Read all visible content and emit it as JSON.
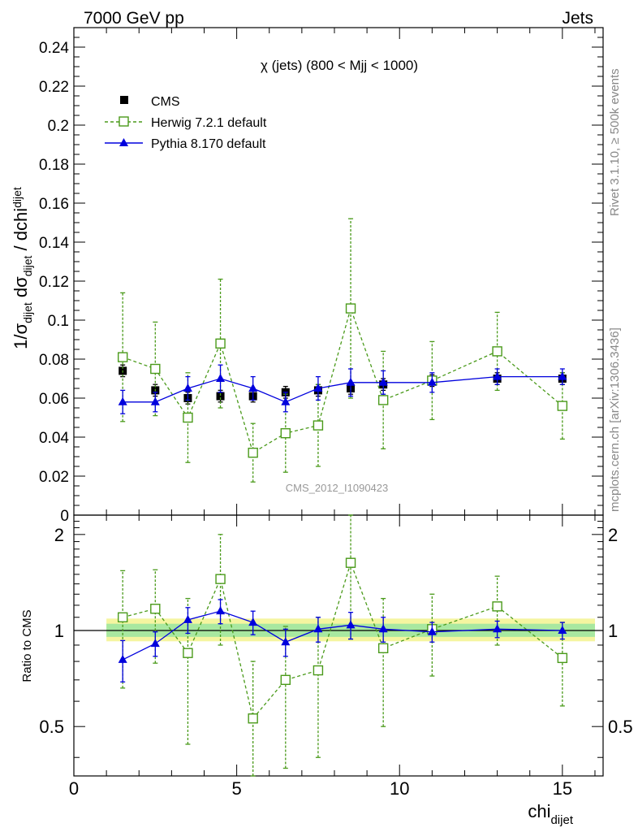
{
  "header": {
    "left": "7000 GeV pp",
    "right": "Jets"
  },
  "side": {
    "rivet": "Rivet 3.1.10, ≥ 500k events",
    "mcplots": "mcplots.cern.ch [arXiv:1306.3436]"
  },
  "analysis_tag": "CMS_2012_I1090423",
  "chart_data": [
    {
      "type": "scatter",
      "title": "χ (jets) (800 < Mjj < 1000)",
      "ylabel": {
        "main": "1/σ",
        "s1": "dijet",
        "mid": " dσ",
        "s2": "dijet",
        "end": " / dchi",
        "s3": "dijet"
      },
      "ylim": [
        0,
        0.25
      ],
      "yticks": [
        "0",
        "0.02",
        "0.04",
        "0.06",
        "0.08",
        "0.1",
        "0.12",
        "0.14",
        "0.16",
        "0.18",
        "0.2",
        "0.22",
        "0.24"
      ],
      "xlim": [
        0,
        16.25
      ],
      "legend_position": "top-left",
      "series": [
        {
          "name": "CMS",
          "style": "data",
          "color": "#000000",
          "x": [
            1.5,
            2.5,
            3.5,
            4.5,
            5.5,
            6.5,
            7.5,
            8.5,
            9.5,
            11,
            13,
            15
          ],
          "y": [
            0.074,
            0.064,
            0.06,
            0.061,
            0.061,
            0.063,
            0.064,
            0.065,
            0.067,
            0.069,
            0.07,
            0.07
          ],
          "err": [
            0.003,
            0.003,
            0.003,
            0.003,
            0.003,
            0.003,
            0.003,
            0.003,
            0.003,
            0.003,
            0.003,
            0.003
          ]
        },
        {
          "name": "Herwig 7.2.1 default",
          "style": "herwig",
          "color": "#4a9a1a",
          "x": [
            1.5,
            2.5,
            3.5,
            4.5,
            5.5,
            6.5,
            7.5,
            8.5,
            9.5,
            11,
            13,
            15
          ],
          "y": [
            0.081,
            0.075,
            0.05,
            0.088,
            0.032,
            0.042,
            0.046,
            0.106,
            0.059,
            0.069,
            0.084,
            0.056
          ],
          "err": [
            0.033,
            0.024,
            0.023,
            0.033,
            0.015,
            0.02,
            0.021,
            0.046,
            0.025,
            0.02,
            0.02,
            0.017
          ]
        },
        {
          "name": "Pythia 8.170 default",
          "style": "pythia",
          "color": "#0000dd",
          "x": [
            1.5,
            2.5,
            3.5,
            4.5,
            5.5,
            6.5,
            7.5,
            8.5,
            9.5,
            11,
            13,
            15
          ],
          "y": [
            0.058,
            0.058,
            0.065,
            0.07,
            0.065,
            0.058,
            0.065,
            0.068,
            0.068,
            0.068,
            0.071,
            0.071
          ],
          "err": [
            0.006,
            0.005,
            0.006,
            0.007,
            0.006,
            0.005,
            0.006,
            0.007,
            0.006,
            0.005,
            0.004,
            0.004
          ]
        }
      ]
    },
    {
      "type": "scatter",
      "ylabel": "Ratio to CMS",
      "xlabel": {
        "main": "chi",
        "sub": "dijet"
      },
      "ylim": [
        0.35,
        2.3
      ],
      "yticks": [
        "0.5",
        "1",
        "2"
      ],
      "xticks": [
        "0",
        "5",
        "10",
        "15"
      ],
      "xlim": [
        0,
        16.25
      ],
      "band_x": [
        1,
        16
      ],
      "series": [
        {
          "name": "Herwig 7.2.1 default",
          "style": "herwig",
          "color": "#4a9a1a",
          "x": [
            1.5,
            2.5,
            3.5,
            4.5,
            5.5,
            6.5,
            7.5,
            8.5,
            9.5,
            11,
            13,
            15
          ],
          "y": [
            1.1,
            1.17,
            0.85,
            1.45,
            0.53,
            0.7,
            0.75,
            1.63,
            0.88,
            1.01,
            1.19,
            0.82
          ],
          "err": [
            0.44,
            0.38,
            0.41,
            0.55,
            0.27,
            0.33,
            0.35,
            0.69,
            0.38,
            0.29,
            0.29,
            0.24
          ]
        },
        {
          "name": "Pythia 8.170 default",
          "style": "pythia",
          "color": "#0000dd",
          "x": [
            1.5,
            2.5,
            3.5,
            4.5,
            5.5,
            6.5,
            7.5,
            8.5,
            9.5,
            11,
            13,
            15
          ],
          "y": [
            0.81,
            0.91,
            1.08,
            1.15,
            1.06,
            0.92,
            1.01,
            1.04,
            1.01,
            0.99,
            1.01,
            1.0
          ],
          "err": [
            0.12,
            0.08,
            0.1,
            0.1,
            0.09,
            0.09,
            0.09,
            0.1,
            0.09,
            0.07,
            0.06,
            0.06
          ]
        }
      ]
    }
  ]
}
